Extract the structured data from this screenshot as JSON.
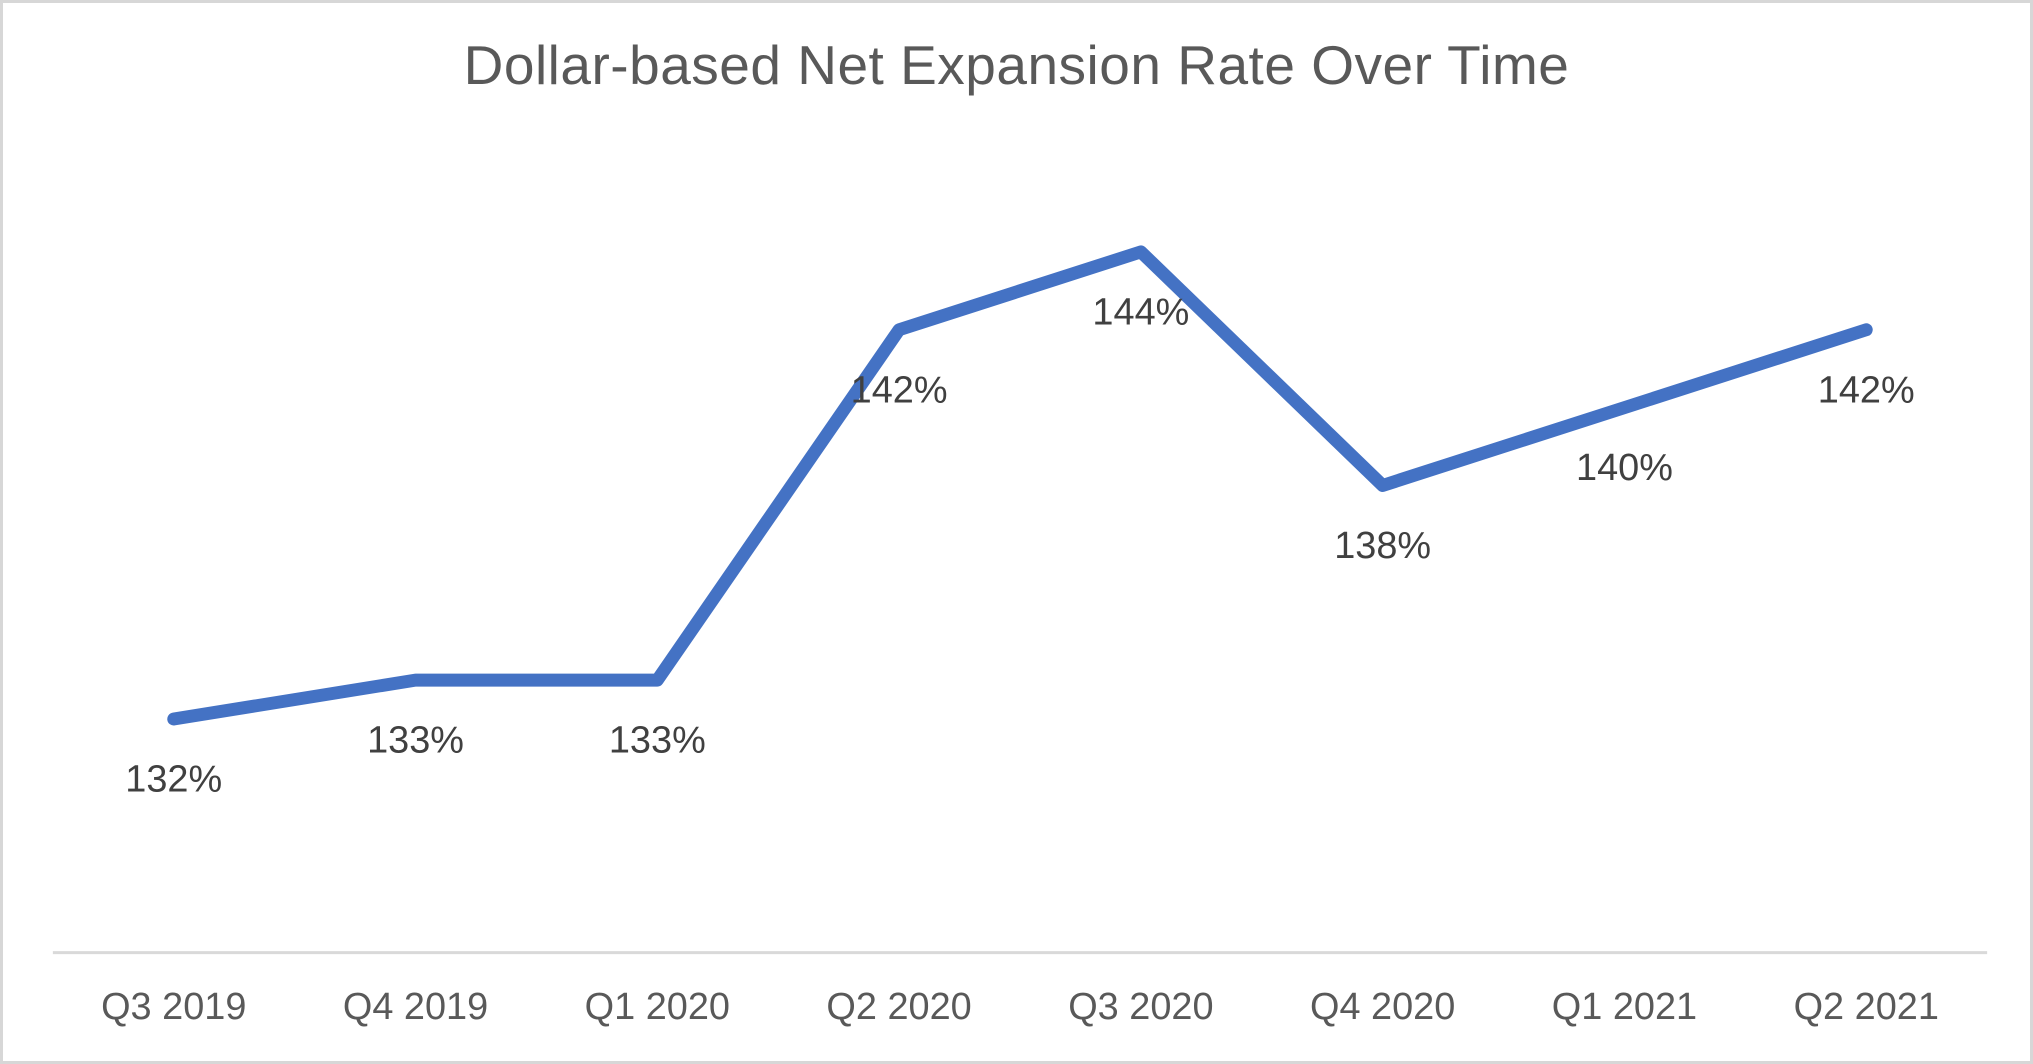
{
  "chart_data": {
    "type": "line",
    "title": "Dollar-based Net Expansion Rate Over Time",
    "categories": [
      "Q3 2019",
      "Q4 2019",
      "Q1 2020",
      "Q2 2020",
      "Q3 2020",
      "Q4 2020",
      "Q1 2021",
      "Q2 2021"
    ],
    "series": [
      {
        "name": "Dollar-based Net Expansion Rate",
        "values": [
          132,
          133,
          133,
          142,
          144,
          138,
          140,
          142
        ],
        "data_labels": [
          "132%",
          "133%",
          "133%",
          "142%",
          "144%",
          "138%",
          "140%",
          "142%"
        ]
      }
    ],
    "xlabel": "",
    "ylabel": "",
    "ylim": [
      126,
      146
    ],
    "grid": false,
    "legend": "none",
    "y_axis_visible": false,
    "data_label_position": "below",
    "colors": {
      "line": "#4472C4",
      "axis_line": "#D9D9D9",
      "title_text": "#595959",
      "data_label_text": "#404040",
      "tick_label_text": "#595959",
      "background": "#FFFFFF",
      "frame_border": "#D7D7D7"
    }
  }
}
